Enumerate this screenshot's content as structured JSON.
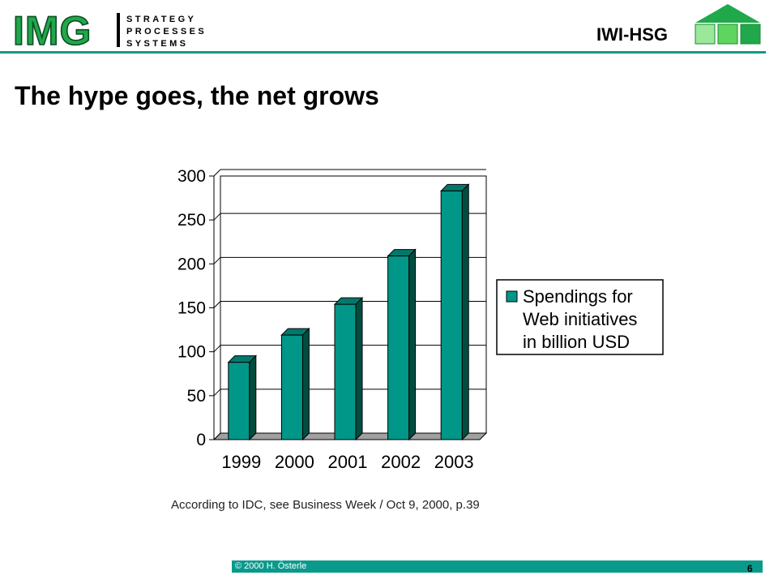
{
  "header": {
    "logo_text": "IMG",
    "logo_lines": [
      "STRATEGY",
      "PROCESSES",
      "SYSTEMS"
    ],
    "org": "IWI-HSG",
    "accent_color": "#0a9a8c",
    "logo_green": "#20a84a"
  },
  "slide": {
    "title": "The hype goes, the net grows",
    "source": "According to IDC, see Business Week / Oct 9, 2000, p.39"
  },
  "footer": {
    "copyright": "© 2000 H. Österle",
    "page": "6"
  },
  "chart_data": {
    "type": "bar",
    "title": "",
    "xlabel": "",
    "ylabel": "",
    "categories": [
      "1999",
      "2000",
      "2001",
      "2002",
      "2003"
    ],
    "series": [
      {
        "name": "Spendings for Web initiatives in billion USD",
        "values": [
          88,
          119,
          154,
          209,
          283
        ]
      }
    ],
    "legend_lines": [
      "Spendings for",
      "Web initiatives",
      "in billion USD"
    ],
    "ylim": [
      0,
      300
    ],
    "yticks": [
      "0",
      "50",
      "100",
      "150",
      "200",
      "250",
      "300"
    ],
    "grid": true,
    "legend_position": "right",
    "bar_color": "#009688"
  }
}
